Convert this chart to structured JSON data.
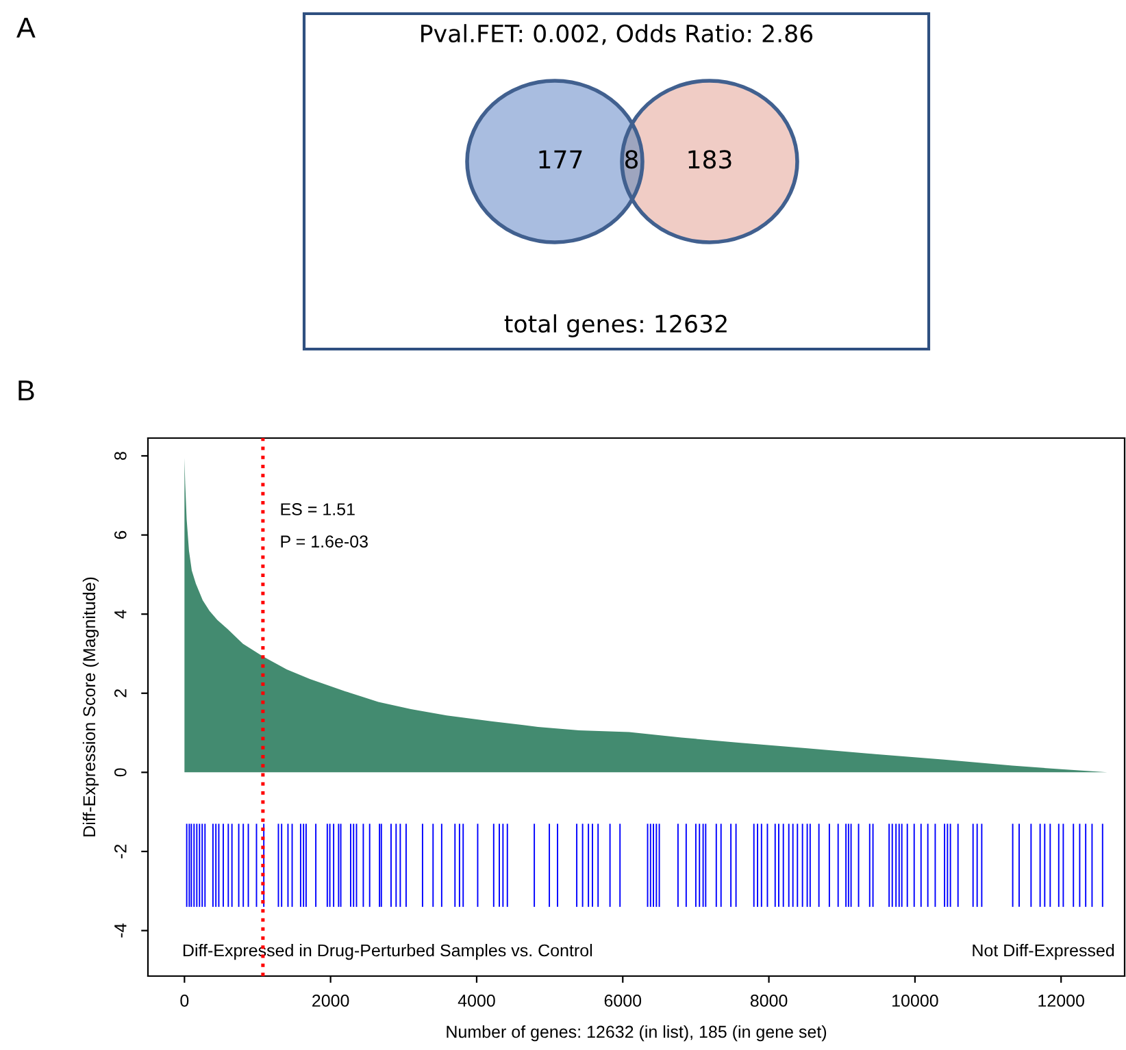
{
  "chart_data": [
    {
      "type": "other",
      "title": "Pval.FET: 0.002, Odds Ratio: 2.86",
      "values": [
        177,
        8,
        183
      ],
      "colors": [
        "#a9bde0",
        "#9ea5bf",
        "#f0ccc5"
      ],
      "data_labels": true,
      "annotations": [
        "A",
        "total genes: 12632"
      ]
    },
    {
      "type": "area",
      "xlabel": "Number of genes: 12632 (in list), 185 (in gene set)",
      "ylabel": "Diff-Expression Score (Magnitude)",
      "xlim": [
        -500,
        12870
      ],
      "ylim": [
        -5.15,
        8.45
      ],
      "xticks": [
        0,
        2000,
        4000,
        6000,
        8000,
        10000,
        12000
      ],
      "yticks": [
        -4,
        -2,
        0,
        2,
        4,
        6,
        8
      ],
      "series": [
        {
          "type": "area",
          "color": "#438b70",
          "x": [
            0,
            10,
            30,
            62,
            100,
            156,
            250,
            343,
            450,
            593,
            800,
            1074,
            1400,
            1717,
            2200,
            2654,
            3100,
            3590,
            4200,
            4839,
            5400,
            6087,
            6800,
            7585,
            8500,
            9459,
            10400,
            11332,
            12000,
            12632
          ],
          "values": [
            7.95,
            7.3,
            6.4,
            5.6,
            5.1,
            4.77,
            4.35,
            4.08,
            3.85,
            3.62,
            3.25,
            2.93,
            2.6,
            2.36,
            2.05,
            1.78,
            1.6,
            1.44,
            1.29,
            1.15,
            1.06,
            1.02,
            0.88,
            0.75,
            0.61,
            0.46,
            0.32,
            0.17,
            0.08,
            0
          ]
        },
        {
          "type": "bar",
          "color": "#0000ff",
          "x": [
            31,
            66,
            94,
            131,
            169,
            206,
            243,
            281,
            390,
            430,
            470,
            531,
            600,
            650,
            743,
            805,
            874,
            986,
            1086,
            1286,
            1330,
            1417,
            1474,
            1590,
            1630,
            1665,
            1798,
            1955,
            1990,
            2042,
            2110,
            2140,
            2275,
            2315,
            2355,
            2448,
            2535,
            2670,
            2695,
            2828,
            2897,
            2954,
            3034,
            3259,
            3403,
            3521,
            3703,
            3765,
            3815,
            4014,
            4233,
            4310,
            4360,
            4420,
            4789,
            4995,
            5107,
            5370,
            5450,
            5530,
            5585,
            5662,
            5825,
            5962,
            6340,
            6380,
            6420,
            6460,
            6500,
            6756,
            6868,
            7000,
            7050,
            7100,
            7135,
            7280,
            7345,
            7480,
            7550,
            7795,
            7845,
            7899,
            7980,
            8086,
            8135,
            8198,
            8273,
            8329,
            8391,
            8460,
            8525,
            8565,
            8685,
            8828,
            8948,
            9055,
            9090,
            9125,
            9228,
            9380,
            9425,
            9646,
            9689,
            9740,
            9783,
            9820,
            9895,
            9989,
            10083,
            10176,
            10277,
            10405,
            10445,
            10485,
            10589,
            10795,
            10851,
            10914,
            11338,
            11426,
            11589,
            11713,
            11776,
            11851,
            11968,
            12030,
            12169,
            12255,
            12337,
            12424,
            12568
          ],
          "values": [
            2.1,
            2.1,
            2.1,
            2.1,
            2.1,
            2.1,
            2.1,
            2.1,
            2.1,
            2.1,
            2.1,
            2.1,
            2.1,
            2.1,
            2.1,
            2.1,
            2.1,
            2.1,
            2.1,
            2.1,
            2.1,
            2.1,
            2.1,
            2.1,
            2.1,
            2.1,
            2.1,
            2.1,
            2.1,
            2.1,
            2.1,
            2.1,
            2.1,
            2.1,
            2.1,
            2.1,
            2.1,
            2.1,
            2.1,
            2.1,
            2.1,
            2.1,
            2.1,
            2.1,
            2.1,
            2.1,
            2.1,
            2.1,
            2.1,
            2.1,
            2.1,
            2.1,
            2.1,
            2.1,
            2.1,
            2.1,
            2.1,
            2.1,
            2.1,
            2.1,
            2.1,
            2.1,
            2.1,
            2.1,
            2.1,
            2.1,
            2.1,
            2.1,
            2.1,
            2.1,
            2.1,
            2.1,
            2.1,
            2.1,
            2.1,
            2.1,
            2.1,
            2.1,
            2.1,
            2.1,
            2.1,
            2.1,
            2.1,
            2.1,
            2.1,
            2.1,
            2.1,
            2.1,
            2.1,
            2.1,
            2.1,
            2.1,
            2.1,
            2.1,
            2.1,
            2.1,
            2.1,
            2.1,
            2.1,
            2.1,
            2.1,
            2.1,
            2.1,
            2.1,
            2.1,
            2.1,
            2.1,
            2.1,
            2.1,
            2.1,
            2.1,
            2.1,
            2.1,
            2.1,
            2.1,
            2.1,
            2.1,
            2.1,
            2.1,
            2.1,
            2.1,
            2.1,
            2.1,
            2.1,
            2.1,
            2.1,
            2.1,
            2.1,
            2.1,
            2.1,
            2.1
          ],
          "base": [
            -3.4,
            -3.4,
            -3.4,
            -3.4,
            -3.4,
            -3.4,
            -3.4,
            -3.4,
            -3.4,
            -3.4,
            -3.4,
            -3.4,
            -3.4,
            -3.4,
            -3.4,
            -3.4,
            -3.4,
            -3.4,
            -3.4,
            -3.4,
            -3.4,
            -3.4,
            -3.4,
            -3.4,
            -3.4,
            -3.4,
            -3.4,
            -3.4,
            -3.4,
            -3.4,
            -3.4,
            -3.4,
            -3.4,
            -3.4,
            -3.4,
            -3.4,
            -3.4,
            -3.4,
            -3.4,
            -3.4,
            -3.4,
            -3.4,
            -3.4,
            -3.4,
            -3.4,
            -3.4,
            -3.4,
            -3.4,
            -3.4,
            -3.4,
            -3.4,
            -3.4,
            -3.4,
            -3.4,
            -3.4,
            -3.4,
            -3.4,
            -3.4,
            -3.4,
            -3.4,
            -3.4,
            -3.4,
            -3.4,
            -3.4,
            -3.4,
            -3.4,
            -3.4,
            -3.4,
            -3.4,
            -3.4,
            -3.4,
            -3.4,
            -3.4,
            -3.4,
            -3.4,
            -3.4,
            -3.4,
            -3.4,
            -3.4,
            -3.4,
            -3.4,
            -3.4,
            -3.4,
            -3.4,
            -3.4,
            -3.4,
            -3.4,
            -3.4,
            -3.4,
            -3.4,
            -3.4,
            -3.4,
            -3.4,
            -3.4,
            -3.4,
            -3.4,
            -3.4,
            -3.4,
            -3.4,
            -3.4,
            -3.4,
            -3.4,
            -3.4,
            -3.4,
            -3.4,
            -3.4,
            -3.4,
            -3.4,
            -3.4,
            -3.4,
            -3.4,
            -3.4,
            -3.4,
            -3.4,
            -3.4,
            -3.4,
            -3.4,
            -3.4,
            -3.4,
            -3.4,
            -3.4,
            -3.4,
            -3.4,
            -3.4,
            -3.4,
            -3.4,
            -3.4,
            -3.4,
            -3.4,
            -3.4,
            -3.4
          ]
        }
      ],
      "ref_lines": [
        {
          "axis": "x",
          "value": 1074,
          "color": "#ff0000",
          "line_style": "dotted"
        }
      ],
      "annotations": [
        "ES = 1.51",
        "P = 1.6e-03",
        "B",
        "Diff-Expressed in Drug-Perturbed Samples vs. Control",
        "Not Diff-Expressed"
      ],
      "grid": false
    }
  ]
}
